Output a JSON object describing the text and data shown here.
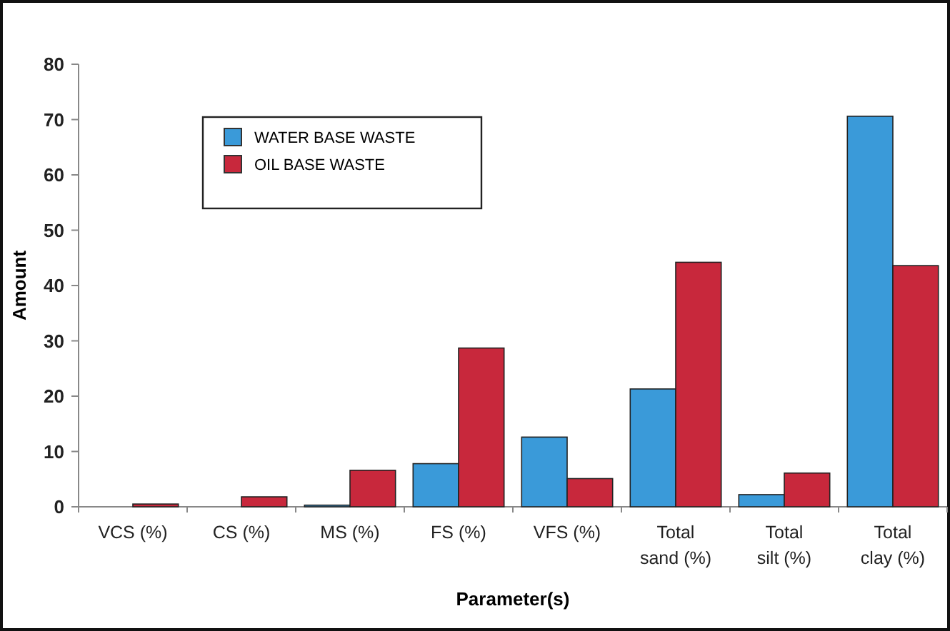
{
  "chart_data": {
    "type": "bar",
    "xlabel": "Parameter(s)",
    "ylabel": "Amount",
    "categories": [
      "VCS  (%)",
      "CS  (%)",
      "MS (%)",
      "FS (%)",
      "VFS (%)",
      "Total sand (%)",
      "Total silt (%)",
      "Total clay (%)"
    ],
    "series": [
      {
        "name": "WATER BASE  WASTE",
        "color": "#3a9ad9",
        "values": [
          0,
          0,
          0.3,
          7.8,
          12.6,
          21.3,
          2.2,
          70.6
        ]
      },
      {
        "name": "OIL BASE  WASTE",
        "color": "#c8283c",
        "values": [
          0.5,
          1.8,
          6.6,
          28.7,
          5.1,
          44.2,
          6.1,
          43.6
        ]
      }
    ],
    "ylim": [
      0,
      80
    ],
    "yticks": [
      0,
      10,
      20,
      30,
      40,
      50,
      60,
      70,
      80
    ],
    "grid": false,
    "legend": "top left"
  }
}
